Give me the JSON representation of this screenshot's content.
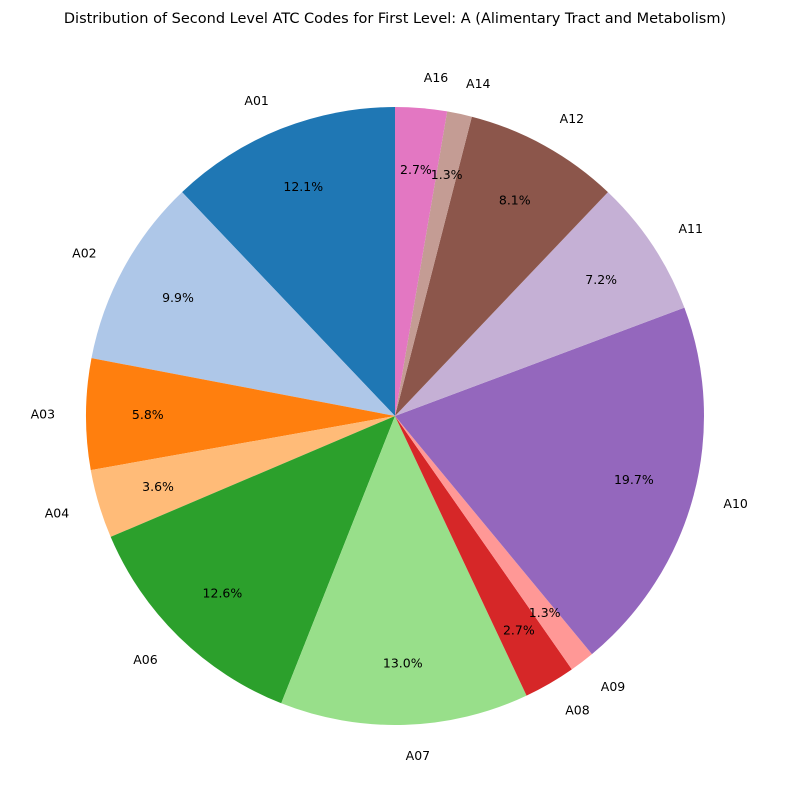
{
  "chart_data": {
    "type": "pie",
    "title": "Distribution of Second Level ATC Codes for First Level: A (Alimentary Tract and Metabolism)",
    "start_angle_deg": 90,
    "direction": "counterclockwise",
    "categories": [
      "A01",
      "A02",
      "A03",
      "A04",
      "A06",
      "A07",
      "A08",
      "A09",
      "A10",
      "A11",
      "A12",
      "A14",
      "A16"
    ],
    "values": [
      12.1,
      9.9,
      5.8,
      3.6,
      12.6,
      13.0,
      2.7,
      1.3,
      19.7,
      7.2,
      8.1,
      1.3,
      2.7
    ],
    "percent_labels": [
      "12.1%",
      "9.9%",
      "5.8%",
      "3.6%",
      "12.6%",
      "13.0%",
      "2.7%",
      "1.3%",
      "19.7%",
      "7.2%",
      "8.1%",
      "1.3%",
      "2.7%"
    ],
    "colors": [
      "#1f77b4",
      "#aec7e8",
      "#ff7f0e",
      "#ffbb78",
      "#2ca02c",
      "#98df8a",
      "#d62728",
      "#ff9896",
      "#9467bd",
      "#c5b0d5",
      "#8c564b",
      "#c49c94",
      "#e377c2"
    ]
  }
}
